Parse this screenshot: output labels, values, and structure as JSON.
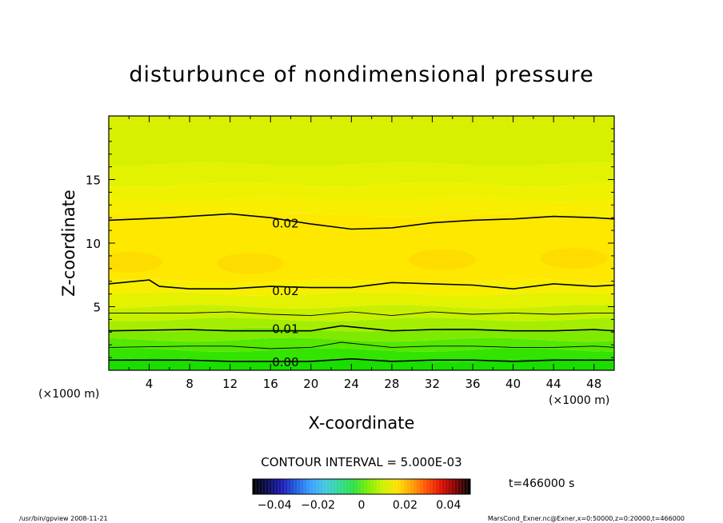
{
  "chart_data": {
    "type": "heatmap",
    "title": "disturbunce of nondimensional pressure",
    "xlabel": "X-coordinate",
    "ylabel": "Z-coordinate",
    "x_unit": "(×1000 m)",
    "y_unit": "(×1000 m)",
    "xlim": [
      0,
      50
    ],
    "ylim": [
      0,
      20
    ],
    "x_ticks": [
      "4",
      "8",
      "12",
      "16",
      "20",
      "24",
      "28",
      "32",
      "36",
      "40",
      "44",
      "48"
    ],
    "x_tick_values": [
      4,
      8,
      12,
      16,
      20,
      24,
      28,
      32,
      36,
      40,
      44,
      48
    ],
    "y_ticks": [
      "5",
      "10",
      "15"
    ],
    "y_tick_values": [
      5,
      10,
      15
    ],
    "color_scale": "blue-green-yellow-red",
    "contour_interval_label": "CONTOUR INTERVAL = 5.000E-03",
    "contour_labels": [
      {
        "text": "0.02",
        "x": 16,
        "z": 11.6
      },
      {
        "text": "0.02",
        "x": 16,
        "z": 6.3
      },
      {
        "text": "0.01",
        "x": 16,
        "z": 3.3
      },
      {
        "text": "0.00",
        "x": 16,
        "z": 0.7
      }
    ],
    "contours": [
      {
        "level": 0.02,
        "labeled": true,
        "points": [
          [
            0,
            11.8
          ],
          [
            6,
            12.0
          ],
          [
            12,
            12.3
          ],
          [
            16,
            12.0
          ],
          [
            20,
            11.5
          ],
          [
            24,
            11.1
          ],
          [
            28,
            11.2
          ],
          [
            32,
            11.6
          ],
          [
            36,
            11.8
          ],
          [
            40,
            11.9
          ],
          [
            44,
            12.1
          ],
          [
            48,
            12.0
          ],
          [
            50,
            11.9
          ]
        ]
      },
      {
        "level": 0.02,
        "labeled": true,
        "points": [
          [
            0,
            6.8
          ],
          [
            4,
            7.1
          ],
          [
            5,
            6.6
          ],
          [
            8,
            6.4
          ],
          [
            12,
            6.4
          ],
          [
            16,
            6.6
          ],
          [
            20,
            6.5
          ],
          [
            24,
            6.5
          ],
          [
            28,
            6.9
          ],
          [
            32,
            6.8
          ],
          [
            36,
            6.7
          ],
          [
            40,
            6.4
          ],
          [
            44,
            6.8
          ],
          [
            48,
            6.6
          ],
          [
            50,
            6.7
          ]
        ]
      },
      {
        "level": 0.015,
        "labeled": false,
        "points": [
          [
            0,
            4.5
          ],
          [
            8,
            4.5
          ],
          [
            12,
            4.6
          ],
          [
            16,
            4.4
          ],
          [
            20,
            4.3
          ],
          [
            24,
            4.6
          ],
          [
            28,
            4.3
          ],
          [
            32,
            4.6
          ],
          [
            36,
            4.4
          ],
          [
            40,
            4.5
          ],
          [
            44,
            4.4
          ],
          [
            48,
            4.5
          ],
          [
            50,
            4.5
          ]
        ]
      },
      {
        "level": 0.01,
        "labeled": true,
        "points": [
          [
            0,
            3.1
          ],
          [
            8,
            3.2
          ],
          [
            12,
            3.1
          ],
          [
            16,
            3.1
          ],
          [
            20,
            3.1
          ],
          [
            23,
            3.5
          ],
          [
            28,
            3.1
          ],
          [
            32,
            3.2
          ],
          [
            36,
            3.2
          ],
          [
            40,
            3.1
          ],
          [
            44,
            3.1
          ],
          [
            48,
            3.2
          ],
          [
            50,
            3.1
          ]
        ]
      },
      {
        "level": 0.005,
        "labeled": false,
        "points": [
          [
            0,
            1.8
          ],
          [
            8,
            1.9
          ],
          [
            12,
            1.9
          ],
          [
            16,
            1.7
          ],
          [
            20,
            1.8
          ],
          [
            23,
            2.2
          ],
          [
            28,
            1.8
          ],
          [
            32,
            1.9
          ],
          [
            36,
            1.9
          ],
          [
            40,
            1.8
          ],
          [
            44,
            1.8
          ],
          [
            48,
            1.9
          ],
          [
            50,
            1.8
          ]
        ]
      },
      {
        "level": 0.0,
        "labeled": true,
        "points": [
          [
            0,
            0.8
          ],
          [
            8,
            0.8
          ],
          [
            12,
            0.7
          ],
          [
            16,
            0.7
          ],
          [
            20,
            0.7
          ],
          [
            24,
            0.9
          ],
          [
            28,
            0.7
          ],
          [
            32,
            0.8
          ],
          [
            36,
            0.8
          ],
          [
            40,
            0.7
          ],
          [
            44,
            0.8
          ],
          [
            48,
            0.8
          ],
          [
            50,
            0.8
          ]
        ]
      }
    ],
    "fill_bands": [
      {
        "z_from": 0.0,
        "z_to": 0.8,
        "color": "#19de00"
      },
      {
        "z_from": 0.8,
        "z_to": 1.6,
        "color": "#33e400"
      },
      {
        "z_from": 1.6,
        "z_to": 2.4,
        "color": "#55e800"
      },
      {
        "z_from": 2.4,
        "z_to": 3.2,
        "color": "#7eea00"
      },
      {
        "z_from": 3.2,
        "z_to": 4.0,
        "color": "#a6ee00"
      },
      {
        "z_from": 4.0,
        "z_to": 5.0,
        "color": "#c6f000"
      },
      {
        "z_from": 5.0,
        "z_to": 6.0,
        "color": "#e4f200"
      },
      {
        "z_from": 6.0,
        "z_to": 7.0,
        "color": "#f8ee00"
      },
      {
        "z_from": 7.0,
        "z_to": 12.2,
        "color": "#ffe800"
      },
      {
        "z_from": 12.2,
        "z_to": 13.4,
        "color": "#f8ee00"
      },
      {
        "z_from": 13.4,
        "z_to": 14.6,
        "color": "#eef200"
      },
      {
        "z_from": 14.6,
        "z_to": 16.2,
        "color": "#e2f200"
      },
      {
        "z_from": 16.2,
        "z_to": 20.0,
        "color": "#d6f000"
      }
    ],
    "core_blobs": [
      {
        "x": 2,
        "z": 8.5,
        "color": "#ffdc00"
      },
      {
        "x": 14,
        "z": 8.4,
        "color": "#ffdc00"
      },
      {
        "x": 33,
        "z": 8.7,
        "color": "#ffdc00"
      },
      {
        "x": 46,
        "z": 8.8,
        "color": "#ffdc00"
      }
    ],
    "colorbar": {
      "ticks": [
        "−0.04",
        "−0.02",
        "0",
        "0.02",
        "0.04"
      ],
      "tick_values": [
        -0.04,
        -0.02,
        0,
        0.02,
        0.04
      ],
      "min": -0.05,
      "max": 0.05,
      "colors": [
        "#000000",
        "#0a0a55",
        "#1b1bb5",
        "#2060e0",
        "#3aa0ff",
        "#40c8e0",
        "#30d890",
        "#30e040",
        "#80ee00",
        "#d0f000",
        "#ffe000",
        "#ffa000",
        "#ff5000",
        "#e01000",
        "#800000",
        "#000000"
      ]
    }
  },
  "annotations": {
    "time": "t=466000 s",
    "footer_left": "/usr/bin/gpview   2008-11-21",
    "footer_right": "MarsCond_Exner.nc@Exner,x=0:50000,z=0:20000,t=466000"
  }
}
